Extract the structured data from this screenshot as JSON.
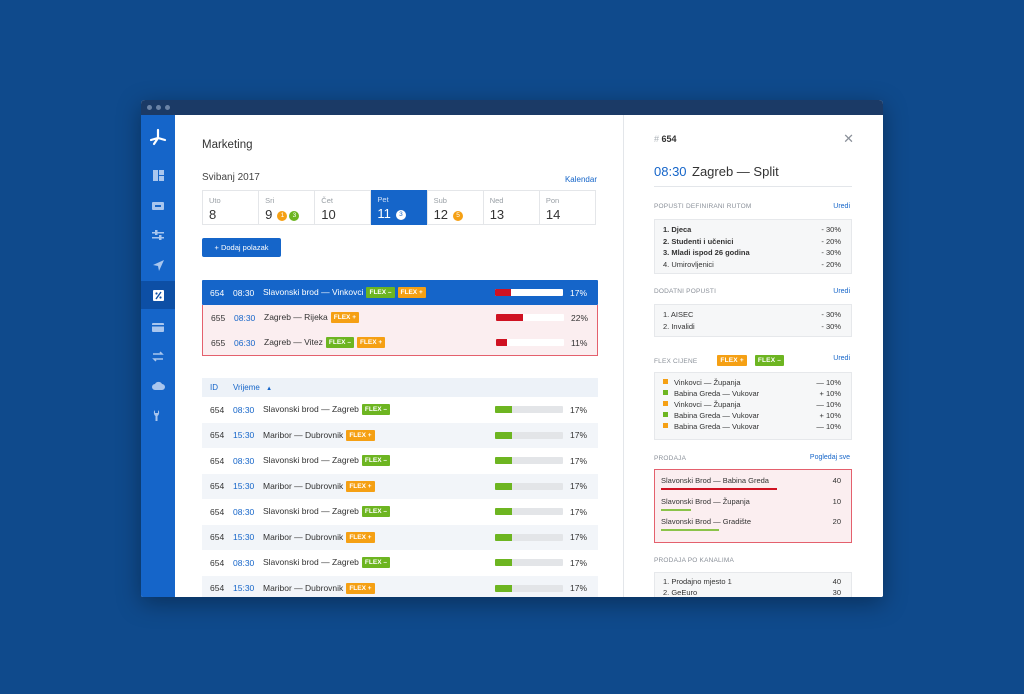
{
  "app": {
    "brand_color": "#1565c9"
  },
  "sidebar": {
    "items": [
      {
        "icon": "dashboard-icon"
      },
      {
        "icon": "ticket-icon"
      },
      {
        "icon": "sliders-icon"
      },
      {
        "icon": "navigation-icon"
      },
      {
        "icon": "percent-icon",
        "active": true
      },
      {
        "icon": "card-icon"
      },
      {
        "icon": "transfer-icon"
      },
      {
        "icon": "cloud-icon"
      },
      {
        "icon": "wrench-icon"
      }
    ]
  },
  "main": {
    "title": "Marketing",
    "month": "Svibanj 2017",
    "calendar_link": "Kalendar",
    "days": [
      {
        "name": "Uto",
        "num": "8",
        "badges": []
      },
      {
        "name": "Sri",
        "num": "9",
        "badges": [
          {
            "n": "1",
            "color": "#f5a014"
          },
          {
            "n": "3",
            "color": "#6db521"
          }
        ]
      },
      {
        "name": "Čet",
        "num": "10",
        "badges": []
      },
      {
        "name": "Pet",
        "num": "11",
        "active": true,
        "badges": [
          {
            "n": "3",
            "color": "#ffffff"
          }
        ]
      },
      {
        "name": "Sub",
        "num": "12",
        "badges": [
          {
            "n": "5",
            "color": "#f5a014"
          }
        ]
      },
      {
        "name": "Ned",
        "num": "13",
        "badges": []
      },
      {
        "name": "Pon",
        "num": "14",
        "badges": []
      }
    ],
    "add_button": "+ Dodaj polazak",
    "selected": {
      "id": "654",
      "time": "08:30",
      "route": "Slavonski brod — Vinkovci",
      "tags": [
        "FLEX –",
        "FLEX +"
      ],
      "pct": "17%",
      "fill": 0.23
    },
    "alerts": [
      {
        "id": "655",
        "time": "08:30",
        "route": "Zagreb — Rijeka",
        "tags": [
          "FLEX +"
        ],
        "pct": "22%",
        "fill": 0.4
      },
      {
        "id": "655",
        "time": "06:30",
        "route": "Zagreb — Vitez",
        "tags": [
          "FLEX –",
          "FLEX +"
        ],
        "pct": "11%",
        "fill": 0.16
      }
    ],
    "table": {
      "headers": [
        "ID",
        "Vrijeme"
      ],
      "rows": [
        {
          "id": "654",
          "time": "08:30",
          "route": "Slavonski brod — Zagreb",
          "tags": [
            "FLEX –"
          ],
          "pct": "17%",
          "fill": 0.25
        },
        {
          "id": "654",
          "time": "15:30",
          "route": "Maribor — Dubrovnik",
          "tags": [
            "FLEX +"
          ],
          "pct": "17%",
          "fill": 0.25
        },
        {
          "id": "654",
          "time": "08:30",
          "route": "Slavonski brod — Zagreb",
          "tags": [
            "FLEX –"
          ],
          "pct": "17%",
          "fill": 0.25
        },
        {
          "id": "654",
          "time": "15:30",
          "route": "Maribor — Dubrovnik",
          "tags": [
            "FLEX +"
          ],
          "pct": "17%",
          "fill": 0.25
        },
        {
          "id": "654",
          "time": "08:30",
          "route": "Slavonski brod — Zagreb",
          "tags": [
            "FLEX –"
          ],
          "pct": "17%",
          "fill": 0.25
        },
        {
          "id": "654",
          "time": "15:30",
          "route": "Maribor — Dubrovnik",
          "tags": [
            "FLEX +"
          ],
          "pct": "17%",
          "fill": 0.25
        },
        {
          "id": "654",
          "time": "08:30",
          "route": "Slavonski brod — Zagreb",
          "tags": [
            "FLEX –"
          ],
          "pct": "17%",
          "fill": 0.25
        },
        {
          "id": "654",
          "time": "15:30",
          "route": "Maribor — Dubrovnik",
          "tags": [
            "FLEX +"
          ],
          "pct": "17%",
          "fill": 0.25
        }
      ]
    }
  },
  "detail": {
    "hash": "#",
    "number": "654",
    "time": "08:30",
    "route": "Zagreb — Split",
    "section1": {
      "title": "POPUSTI DEFINIRANI RUTOM",
      "link": "Uredi",
      "items": [
        {
          "label": "1. Djeca",
          "value": "- 30%",
          "bold": true
        },
        {
          "label": "2. Studenti i učenici",
          "value": "- 20%",
          "bold": true
        },
        {
          "label": "3. Mladi ispod 26 godina",
          "value": "- 30%",
          "bold": true
        },
        {
          "label": "4. Umirovljenici",
          "value": "- 20%",
          "bold": false
        }
      ]
    },
    "section2": {
      "title": "DODATNI POPUSTI",
      "link": "Uredi",
      "items": [
        {
          "label": "1.  AISEC",
          "value": "- 30%"
        },
        {
          "label": "2. Invalidi",
          "value": "- 30%"
        }
      ]
    },
    "section3": {
      "title": "FLEX CIJENE",
      "link": "Uredi",
      "tags": [
        "FLEX +",
        "FLEX –"
      ],
      "items": [
        {
          "label": "Vinkovci — Županja",
          "value": "— 10%",
          "color": "#f5a014"
        },
        {
          "label": "Babina Greda — Vukovar",
          "value": "+ 10%",
          "color": "#6db521"
        },
        {
          "label": "Vinkovci — Županja",
          "value": "— 10%",
          "color": "#f5a014"
        },
        {
          "label": "Babina Greda — Vukovar",
          "value": "+ 10%",
          "color": "#6db521"
        },
        {
          "label": "Babina Greda — Vukovar",
          "value": "— 10%",
          "color": "#f5a014"
        }
      ]
    },
    "section4": {
      "title": "PRODAJA",
      "link": "Pogledaj sve",
      "items": [
        {
          "label": "Slavonski Brod — Babina Greda",
          "value": "40",
          "bar_color": "#cf1222",
          "fill": 1.0
        },
        {
          "label": "Slavonski Brod — Županja",
          "value": "10",
          "bar_color": "#8bc34a",
          "fill": 0.26
        },
        {
          "label": "Slavonski Brod — Gradište",
          "value": "20",
          "bar_color": "#8bc34a",
          "fill": 0.5
        }
      ]
    },
    "section5": {
      "title": "PRODAJA PO KANALIMA",
      "items": [
        {
          "label": "1. Prodajno mjesto 1",
          "value": "40"
        },
        {
          "label": "2. GeEuro",
          "value": "30"
        }
      ]
    }
  }
}
